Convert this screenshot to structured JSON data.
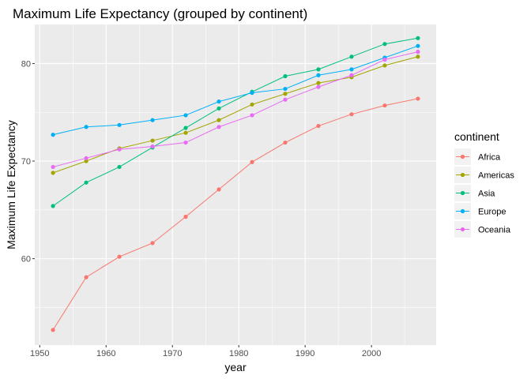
{
  "chart_data": {
    "type": "line",
    "title": "Maximum Life Expectancy (grouped by continent)",
    "xlabel": "year",
    "ylabel": "Maximum Life Expectancy",
    "x": [
      1952,
      1957,
      1962,
      1967,
      1972,
      1977,
      1982,
      1987,
      1992,
      1997,
      2002,
      2007
    ],
    "xlim": [
      1949.25,
      2009.75
    ],
    "ylim": [
      51.15,
      84.0
    ],
    "xticks": [
      1950,
      1960,
      1970,
      1980,
      1990,
      2000
    ],
    "xtick_labels": [
      "1950",
      "1960",
      "1970",
      "1980",
      "1990",
      "2000"
    ],
    "yticks": [
      60,
      70,
      80
    ],
    "ytick_labels": [
      "60",
      "70",
      "80"
    ],
    "grid": true,
    "legend_title": "continent",
    "legend_position": "right",
    "series": [
      {
        "name": "Africa",
        "color": "#F8766D",
        "values": [
          52.7,
          58.1,
          60.2,
          61.6,
          64.3,
          67.1,
          69.9,
          71.9,
          73.6,
          74.8,
          75.7,
          76.4
        ]
      },
      {
        "name": "Americas",
        "color": "#A3A500",
        "values": [
          68.8,
          70.0,
          71.3,
          72.1,
          72.9,
          74.2,
          75.8,
          76.9,
          78.0,
          78.6,
          79.8,
          80.7
        ]
      },
      {
        "name": "Asia",
        "color": "#00BF7D",
        "values": [
          65.4,
          67.8,
          69.4,
          71.4,
          73.4,
          75.4,
          77.1,
          78.7,
          79.4,
          80.7,
          82.0,
          82.6
        ]
      },
      {
        "name": "Europe",
        "color": "#00B0F6",
        "values": [
          72.7,
          73.5,
          73.7,
          74.2,
          74.7,
          76.1,
          77.0,
          77.4,
          78.8,
          79.4,
          80.6,
          81.8
        ]
      },
      {
        "name": "Oceania",
        "color": "#E76BF3",
        "values": [
          69.4,
          70.3,
          71.2,
          71.5,
          71.9,
          73.5,
          74.7,
          76.3,
          77.6,
          78.8,
          80.4,
          81.2
        ]
      }
    ]
  }
}
